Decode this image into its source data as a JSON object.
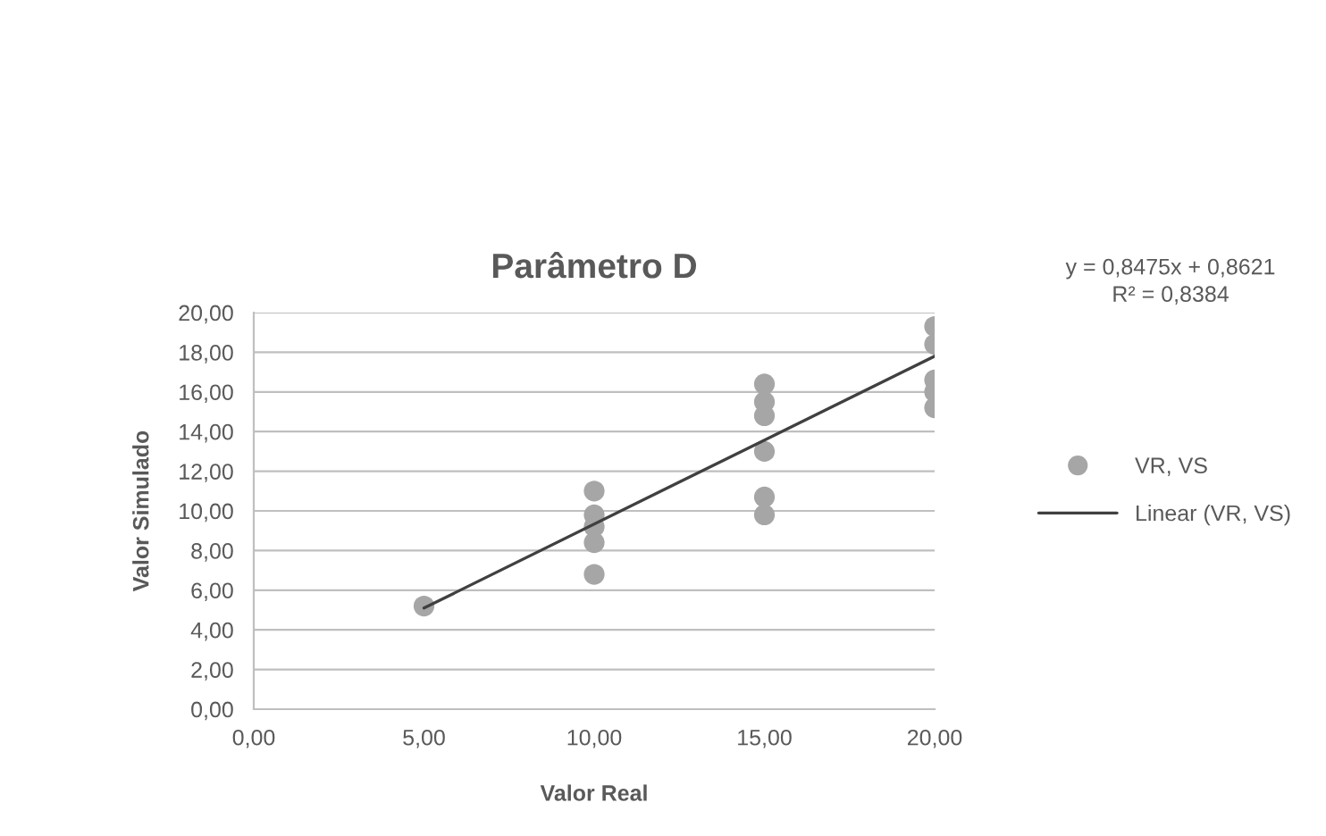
{
  "chart_data": {
    "type": "scatter",
    "title": "Parâmetro D",
    "xlabel": "Valor Real",
    "ylabel": "Valor Simulado",
    "xlim": [
      0,
      20
    ],
    "xticks": [
      {
        "value": 0,
        "label": "0,00"
      },
      {
        "value": 5,
        "label": "5,00"
      },
      {
        "value": 10,
        "label": "10,00"
      },
      {
        "value": 15,
        "label": "15,00"
      },
      {
        "value": 20,
        "label": "20,00"
      }
    ],
    "ylim": [
      0,
      20
    ],
    "yticks": [
      {
        "value": 0,
        "label": "0,00"
      },
      {
        "value": 2,
        "label": "2,00"
      },
      {
        "value": 4,
        "label": "4,00"
      },
      {
        "value": 6,
        "label": "6,00"
      },
      {
        "value": 8,
        "label": "8,00"
      },
      {
        "value": 10,
        "label": "10,00"
      },
      {
        "value": 12,
        "label": "12,00"
      },
      {
        "value": 14,
        "label": "14,00"
      },
      {
        "value": 16,
        "label": "16,00"
      },
      {
        "value": 18,
        "label": "18,00"
      },
      {
        "value": 20,
        "label": "20,00"
      }
    ],
    "grid": "y",
    "legend": "right",
    "annotations": [
      "y = 0,8475x + 0,8621\nR² = 0,8384"
    ],
    "series": [
      {
        "name": "VR, VS",
        "marker": "circle",
        "color": "#a6a6a6",
        "x": [
          5,
          10,
          10,
          10,
          10,
          10,
          15,
          15,
          15,
          15,
          15,
          15,
          20,
          20,
          20,
          20,
          20
        ],
        "values": [
          5.2,
          11.0,
          9.8,
          9.2,
          8.4,
          6.8,
          16.4,
          15.5,
          14.8,
          13.0,
          10.7,
          9.8,
          19.3,
          18.4,
          16.6,
          16.0,
          15.2
        ]
      },
      {
        "name": "Linear (VR, VS)",
        "type": "line",
        "color": "#404040",
        "x": [
          5,
          20
        ],
        "values": [
          5.1,
          17.8
        ]
      }
    ]
  }
}
